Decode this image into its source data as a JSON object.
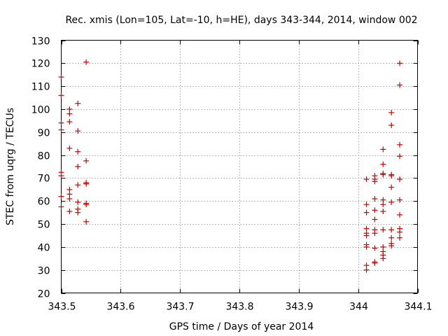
{
  "chart_data": {
    "type": "scatter",
    "title": "Rec. xmis (Lon=105, Lat=-10, h=HE), days 343-344, 2014, window 002",
    "xlabel": "GPS time / Days of year 2014",
    "ylabel": "STEC from uqrg / TECUs",
    "xlim": [
      343.5,
      344.1
    ],
    "ylim": [
      20,
      130
    ],
    "xticks": [
      343.5,
      343.6,
      343.7,
      343.8,
      343.9,
      344.0,
      344.1
    ],
    "xtick_labels": [
      "343.5",
      "343.6",
      "343.7",
      "343.8",
      "343.9",
      "344",
      "344.1"
    ],
    "yticks": [
      20,
      30,
      40,
      50,
      60,
      70,
      80,
      90,
      100,
      110,
      120,
      130
    ],
    "ytick_labels": [
      "20",
      "30",
      "40",
      "50",
      "60",
      "70",
      "80",
      "90",
      "100",
      "110",
      "120",
      "130"
    ],
    "grid": true,
    "marker": "+",
    "marker_color": "#cc0000",
    "series": [
      {
        "name": "STEC",
        "points": [
          [
            343.5,
            114
          ],
          [
            343.5,
            106
          ],
          [
            343.5,
            94
          ],
          [
            343.5,
            91
          ],
          [
            343.5,
            72.5
          ],
          [
            343.5,
            71
          ],
          [
            343.5,
            62
          ],
          [
            343.5,
            57.5
          ],
          [
            343.514,
            100
          ],
          [
            343.514,
            98
          ],
          [
            343.514,
            94.5
          ],
          [
            343.514,
            83
          ],
          [
            343.514,
            65
          ],
          [
            343.514,
            63
          ],
          [
            343.514,
            61
          ],
          [
            343.514,
            55.5
          ],
          [
            343.528,
            102.5
          ],
          [
            343.528,
            90.5
          ],
          [
            343.528,
            81.5
          ],
          [
            343.528,
            75
          ],
          [
            343.528,
            67
          ],
          [
            343.528,
            59.5
          ],
          [
            343.528,
            56.5
          ],
          [
            343.528,
            55
          ],
          [
            343.542,
            120.5
          ],
          [
            343.542,
            77.5
          ],
          [
            343.542,
            68
          ],
          [
            343.542,
            67.5
          ],
          [
            343.542,
            59
          ],
          [
            343.542,
            58.5
          ],
          [
            343.542,
            51
          ],
          [
            344.014,
            69.5
          ],
          [
            344.014,
            58.5
          ],
          [
            344.014,
            55
          ],
          [
            344.014,
            48
          ],
          [
            344.014,
            46
          ],
          [
            344.014,
            45
          ],
          [
            344.014,
            41
          ],
          [
            344.014,
            40
          ],
          [
            344.014,
            32
          ],
          [
            344.014,
            30
          ],
          [
            344.028,
            71
          ],
          [
            344.028,
            69.5
          ],
          [
            344.028,
            68.5
          ],
          [
            344.028,
            61
          ],
          [
            344.028,
            56
          ],
          [
            344.028,
            52
          ],
          [
            344.028,
            47.5
          ],
          [
            344.028,
            46
          ],
          [
            344.028,
            39.5
          ],
          [
            344.028,
            33.5
          ],
          [
            344.028,
            33
          ],
          [
            344.042,
            82.5
          ],
          [
            344.042,
            76
          ],
          [
            344.042,
            72
          ],
          [
            344.042,
            71.5
          ],
          [
            344.042,
            60.5
          ],
          [
            344.042,
            58.5
          ],
          [
            344.042,
            55.5
          ],
          [
            344.042,
            47.5
          ],
          [
            344.042,
            40
          ],
          [
            344.042,
            38
          ],
          [
            344.042,
            36.5
          ],
          [
            344.042,
            35
          ],
          [
            344.056,
            98.5
          ],
          [
            344.056,
            93
          ],
          [
            344.056,
            71.5
          ],
          [
            344.056,
            71
          ],
          [
            344.056,
            66
          ],
          [
            344.056,
            59.5
          ],
          [
            344.056,
            47.5
          ],
          [
            344.056,
            44
          ],
          [
            344.056,
            41.5
          ],
          [
            344.056,
            40.5
          ],
          [
            344.07,
            120
          ],
          [
            344.07,
            110.5
          ],
          [
            344.07,
            84.5
          ],
          [
            344.07,
            79.5
          ],
          [
            344.07,
            69.5
          ],
          [
            344.07,
            60.5
          ],
          [
            344.07,
            54
          ],
          [
            344.07,
            48
          ],
          [
            344.07,
            46.5
          ],
          [
            344.07,
            44
          ]
        ]
      }
    ]
  }
}
